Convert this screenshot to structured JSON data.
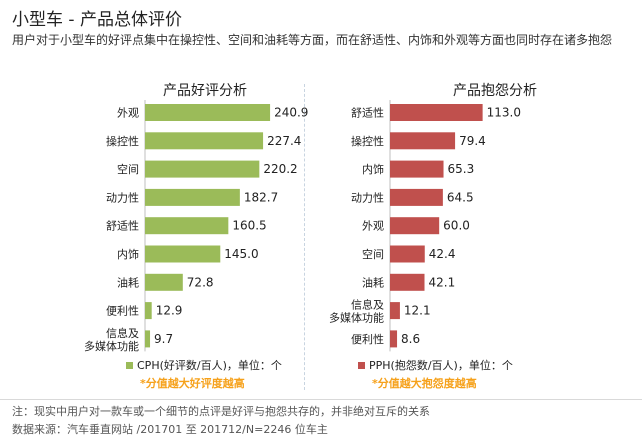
{
  "title": "小型车 - 产品总体评价",
  "subtitle": "用户对于小型车的好评点集中在操控性、空间和油耗等方面，而在舒适性、内饰和外观等方面也同时存在诸多抱怨",
  "colors": {
    "good": "#9bbb59",
    "bad": "#c0504d",
    "emphasis": "#f6a11b"
  },
  "chart_data": [
    {
      "type": "bar",
      "orientation": "horizontal",
      "title": "产品好评分析",
      "categories": [
        "外观",
        "操控性",
        "空间",
        "动力性",
        "舒适性",
        "内饰",
        "油耗",
        "便利性",
        "信息及\n多媒体功能"
      ],
      "series": [
        {
          "name": "CPH(好评数/百人)，单位：个",
          "values": [
            240.9,
            227.4,
            220.2,
            182.7,
            160.5,
            145.0,
            72.8,
            12.9,
            9.7
          ]
        }
      ],
      "xlim": [
        0,
        260
      ],
      "grid": false,
      "legend_position": "bottom",
      "note": "*分值越大好评度越高"
    },
    {
      "type": "bar",
      "orientation": "horizontal",
      "title": "产品抱怨分析",
      "categories": [
        "舒适性",
        "操控性",
        "内饰",
        "动力性",
        "外观",
        "空间",
        "油耗",
        "信息及\n多媒体功能",
        "便利性"
      ],
      "series": [
        {
          "name": "PPH(抱怨数/百人)，单位：个",
          "values": [
            113.0,
            79.4,
            65.3,
            64.5,
            60.0,
            42.4,
            42.1,
            12.1,
            8.6
          ]
        }
      ],
      "xlim": [
        0,
        122
      ],
      "grid": false,
      "legend_position": "bottom",
      "note": "*分值越大抱怨度越高"
    }
  ],
  "footnote": "注：现实中用户对一款车或一个细节的点评是好评与抱怨共存的，并非绝对互斥的关系",
  "source": "数据来源：汽车垂直网站 /201701 至 201712/N=2246 位车主"
}
